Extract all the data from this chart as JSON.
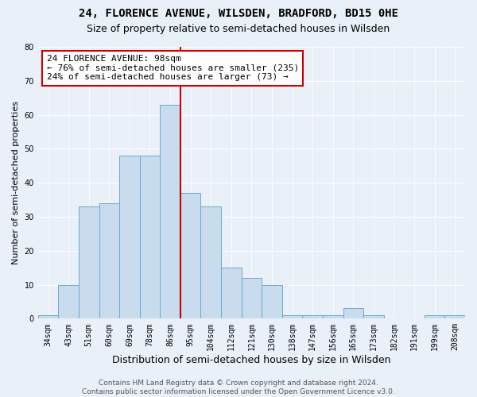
{
  "title": "24, FLORENCE AVENUE, WILSDEN, BRADFORD, BD15 0HE",
  "subtitle": "Size of property relative to semi-detached houses in Wilsden",
  "xlabel": "Distribution of semi-detached houses by size in Wilsden",
  "ylabel": "Number of semi-detached properties",
  "categories": [
    "34sqm",
    "43sqm",
    "51sqm",
    "60sqm",
    "69sqm",
    "78sqm",
    "86sqm",
    "95sqm",
    "104sqm",
    "112sqm",
    "121sqm",
    "130sqm",
    "138sqm",
    "147sqm",
    "156sqm",
    "165sqm",
    "173sqm",
    "182sqm",
    "191sqm",
    "199sqm",
    "208sqm"
  ],
  "values": [
    1,
    10,
    33,
    34,
    48,
    48,
    63,
    37,
    33,
    15,
    12,
    10,
    1,
    1,
    1,
    3,
    1,
    0,
    0,
    1,
    1
  ],
  "bar_color": "#c8dcee",
  "bar_edgecolor": "#6aaad4",
  "vline_x": 6.5,
  "annotation_line1": "24 FLORENCE AVENUE: 98sqm",
  "annotation_line2": "← 76% of semi-detached houses are smaller (235)",
  "annotation_line3": "24% of semi-detached houses are larger (73) →",
  "annotation_box_facecolor": "#ffffff",
  "annotation_box_edgecolor": "#cc0000",
  "vline_color": "#cc0000",
  "ylim": [
    0,
    80
  ],
  "yticks": [
    0,
    10,
    20,
    30,
    40,
    50,
    60,
    70,
    80
  ],
  "footer_text": "Contains HM Land Registry data © Crown copyright and database right 2024.\nContains public sector information licensed under the Open Government Licence v3.0.",
  "bg_color": "#eaf0f8",
  "plot_bg_color": "#eaf0f8",
  "title_fontsize": 10,
  "subtitle_fontsize": 9,
  "xlabel_fontsize": 9,
  "ylabel_fontsize": 8,
  "tick_fontsize": 7,
  "footer_fontsize": 6.5,
  "annotation_fontsize": 8
}
